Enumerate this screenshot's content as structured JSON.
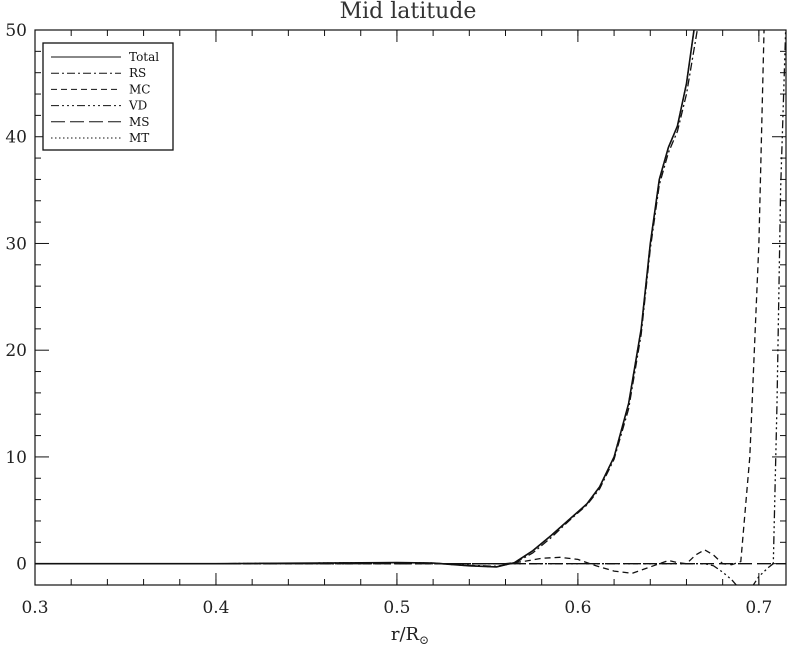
{
  "chart_data": {
    "type": "line",
    "title": "Mid latitude",
    "xlabel_main": "r/R",
    "xlabel_sub": "⊙",
    "ylabel": "",
    "xlim": [
      0.3,
      0.715
    ],
    "ylim": [
      -2,
      50
    ],
    "x_ticks": [
      0.3,
      0.4,
      0.5,
      0.6,
      0.7
    ],
    "x_tick_labels": [
      "0.3",
      "0.4",
      "0.5",
      "0.6",
      "0.7"
    ],
    "y_ticks": [
      0,
      10,
      20,
      30,
      40,
      50
    ],
    "y_tick_labels": [
      "0",
      "10",
      "20",
      "30",
      "40",
      "50"
    ],
    "legend_position": "top-left",
    "grid": false,
    "series": [
      {
        "name": "Total",
        "dash": "",
        "x": [
          0.3,
          0.4,
          0.5,
          0.52,
          0.54,
          0.555,
          0.565,
          0.575,
          0.585,
          0.595,
          0.605,
          0.612,
          0.62,
          0.628,
          0.635,
          0.64,
          0.645,
          0.65,
          0.655,
          0.66,
          0.665
        ],
        "y": [
          0,
          0,
          0.1,
          0.05,
          -0.2,
          -0.3,
          0.1,
          1.2,
          2.6,
          4.1,
          5.6,
          7.2,
          10.0,
          15.0,
          22.0,
          30.0,
          36.0,
          39.0,
          41.0,
          45.0,
          51.0
        ]
      },
      {
        "name": "RS",
        "dash": "8,3,2,3",
        "x": [
          0.3,
          0.4,
          0.5,
          0.52,
          0.54,
          0.555,
          0.565,
          0.575,
          0.585,
          0.595,
          0.605,
          0.612,
          0.62,
          0.628,
          0.635,
          0.64,
          0.645,
          0.65,
          0.655,
          0.66,
          0.667
        ],
        "y": [
          0,
          0,
          0.1,
          0.05,
          -0.15,
          -0.25,
          0.05,
          1.0,
          2.4,
          4.0,
          5.5,
          7.0,
          9.8,
          14.5,
          21.5,
          29.5,
          35.5,
          38.5,
          40.5,
          44.0,
          51.0
        ]
      },
      {
        "name": "MC",
        "dash": "6,4",
        "x": [
          0.3,
          0.56,
          0.57,
          0.58,
          0.59,
          0.6,
          0.61,
          0.62,
          0.63,
          0.64,
          0.65,
          0.655,
          0.66,
          0.665,
          0.67,
          0.675,
          0.68,
          0.685,
          0.69,
          0.695,
          0.7,
          0.703
        ],
        "y": [
          0,
          0,
          0.2,
          0.5,
          0.6,
          0.4,
          -0.2,
          -0.7,
          -0.9,
          -0.3,
          0.3,
          0.1,
          0.0,
          0.8,
          1.3,
          0.8,
          0.0,
          -0.1,
          0.2,
          10.0,
          30.0,
          51.0
        ]
      },
      {
        "name": "VD",
        "dash": "8,3,2,3,2,3,2,3",
        "x": [
          0.3,
          0.66,
          0.67,
          0.675,
          0.68,
          0.685,
          0.69,
          0.695,
          0.7,
          0.705,
          0.708,
          0.71,
          0.712,
          0.715
        ],
        "y": [
          0,
          0,
          0,
          -0.2,
          -0.8,
          -1.5,
          -2.5,
          -2.5,
          -1.2,
          -0.4,
          0,
          15.0,
          35.0,
          51.0
        ]
      },
      {
        "name": "MS",
        "dash": "14,5",
        "x": [
          0.3,
          0.715
        ],
        "y": [
          0,
          0
        ]
      },
      {
        "name": "MT",
        "dash": "1.5,2.5",
        "x": [
          0.3,
          0.4,
          0.5,
          0.52,
          0.54,
          0.555,
          0.565,
          0.575,
          0.585,
          0.595,
          0.605,
          0.612,
          0.62,
          0.628,
          0.635,
          0.64,
          0.645,
          0.65,
          0.655,
          0.66,
          0.665
        ],
        "y": [
          0,
          0,
          0.1,
          0.05,
          -0.2,
          -0.3,
          0.1,
          1.2,
          2.6,
          4.1,
          5.6,
          7.2,
          10.0,
          15.0,
          22.0,
          30.0,
          36.0,
          39.0,
          41.0,
          45.0,
          51.0
        ]
      }
    ]
  }
}
